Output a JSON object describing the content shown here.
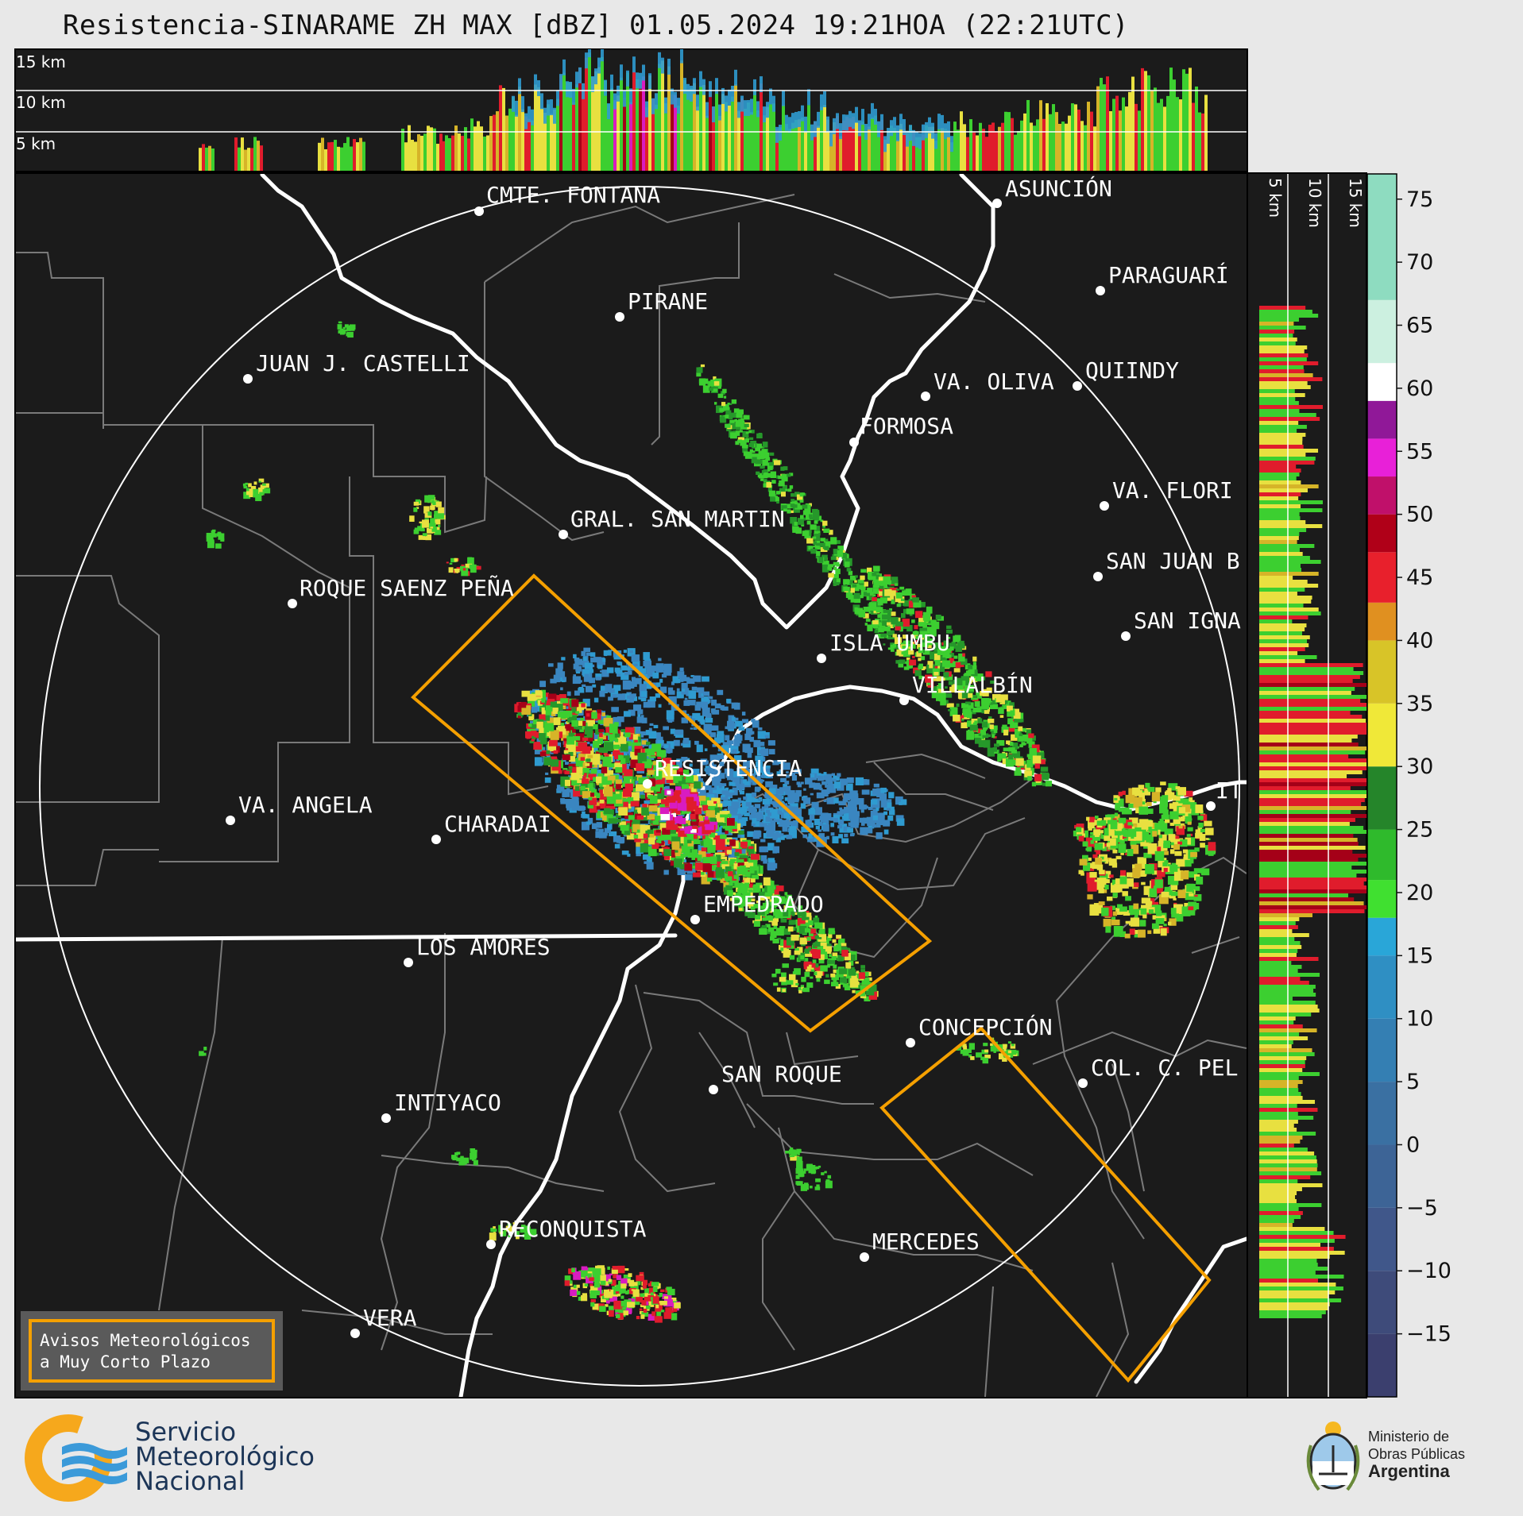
{
  "title": "Resistencia-SINARAME ZH MAX [dBZ] 01.05.2024 19:21HOA (22:21UTC)",
  "top_profile": {
    "height_labels": [
      "15 km",
      "10 km",
      "5 km"
    ]
  },
  "side_profile": {
    "height_labels": [
      "5 km",
      "10 km",
      "15 km"
    ]
  },
  "colorbar": {
    "unit": "dBZ",
    "ticks": [
      "75",
      "70",
      "65",
      "60",
      "55",
      "50",
      "45",
      "40",
      "35",
      "30",
      "25",
      "20",
      "15",
      "10",
      "5",
      "0",
      "−5",
      "−10",
      "−15"
    ],
    "range": [
      -20,
      77
    ],
    "bands": [
      {
        "from": -20,
        "to": -15,
        "color": "#3b3f6e"
      },
      {
        "from": -15,
        "to": -10,
        "color": "#3e4b7a"
      },
      {
        "from": -10,
        "to": -5,
        "color": "#40578a"
      },
      {
        "from": -5,
        "to": 0,
        "color": "#3d6496"
      },
      {
        "from": 0,
        "to": 5,
        "color": "#3a70a2"
      },
      {
        "from": 5,
        "to": 10,
        "color": "#347fb3"
      },
      {
        "from": 10,
        "to": 15,
        "color": "#2f8fc3"
      },
      {
        "from": 15,
        "to": 18,
        "color": "#29a6d8"
      },
      {
        "from": 18,
        "to": 21,
        "color": "#40e030"
      },
      {
        "from": 21,
        "to": 25,
        "color": "#2fba2c"
      },
      {
        "from": 25,
        "to": 30,
        "color": "#25852a"
      },
      {
        "from": 30,
        "to": 35,
        "color": "#f0e838"
      },
      {
        "from": 35,
        "to": 40,
        "color": "#d8c428"
      },
      {
        "from": 40,
        "to": 43,
        "color": "#e09020"
      },
      {
        "from": 43,
        "to": 47,
        "color": "#e8202c"
      },
      {
        "from": 47,
        "to": 50,
        "color": "#b00018"
      },
      {
        "from": 50,
        "to": 53,
        "color": "#c0106a"
      },
      {
        "from": 53,
        "to": 56,
        "color": "#e820d8"
      },
      {
        "from": 56,
        "to": 59,
        "color": "#901898"
      },
      {
        "from": 59,
        "to": 62,
        "color": "#ffffff"
      },
      {
        "from": 62,
        "to": 67,
        "color": "#ccf0e0"
      },
      {
        "from": 67,
        "to": 77,
        "color": "#8edcc0"
      }
    ]
  },
  "cities": [
    {
      "name": "CMTE. FONTANA"
    },
    {
      "name": "ASUNCIÓN"
    },
    {
      "name": "PARAGUARÍ"
    },
    {
      "name": "PIRANE"
    },
    {
      "name": "JUAN J. CASTELLI"
    },
    {
      "name": "VA. OLIVA"
    },
    {
      "name": "QUIINDY"
    },
    {
      "name": "FORMOSA"
    },
    {
      "name": "VA. FLORI"
    },
    {
      "name": "GRAL. SAN MARTIN"
    },
    {
      "name": "SAN JUAN B"
    },
    {
      "name": "ROQUE SAENZ PEÑA"
    },
    {
      "name": "SAN IGNA"
    },
    {
      "name": "ISLA UMBU"
    },
    {
      "name": "VILLALBÍN"
    },
    {
      "name": "RESISTENCIA"
    },
    {
      "name": "IT"
    },
    {
      "name": "VA. ANGELA"
    },
    {
      "name": "CHARADAI"
    },
    {
      "name": "EMPEDRADO"
    },
    {
      "name": "LOS AMORES"
    },
    {
      "name": "CONCEPCIÓN"
    },
    {
      "name": "SAN ROQUE"
    },
    {
      "name": "COL. C. PEL"
    },
    {
      "name": "INTIYACO"
    },
    {
      "name": "RECONQUISTA"
    },
    {
      "name": "MERCEDES"
    },
    {
      "name": "VERA"
    }
  ],
  "avisos": {
    "line1": "Avisos Meteorológicos",
    "line2": "a Muy Corto Plazo"
  },
  "smn": {
    "line1": "Servicio",
    "line2": "Meteorológico",
    "line3": "Nacional",
    "ring_color": "#f6a81c",
    "wave_color": "#3b9ad9"
  },
  "ministerio": {
    "line1": "Ministerio de",
    "line2": "Obras Públicas",
    "line3": "Argentina"
  },
  "colors": {
    "map_bg": "#1b1b1b",
    "warning_polygon": "#f5a000",
    "river": "#ffffff",
    "borders": "#7a7a7a"
  }
}
